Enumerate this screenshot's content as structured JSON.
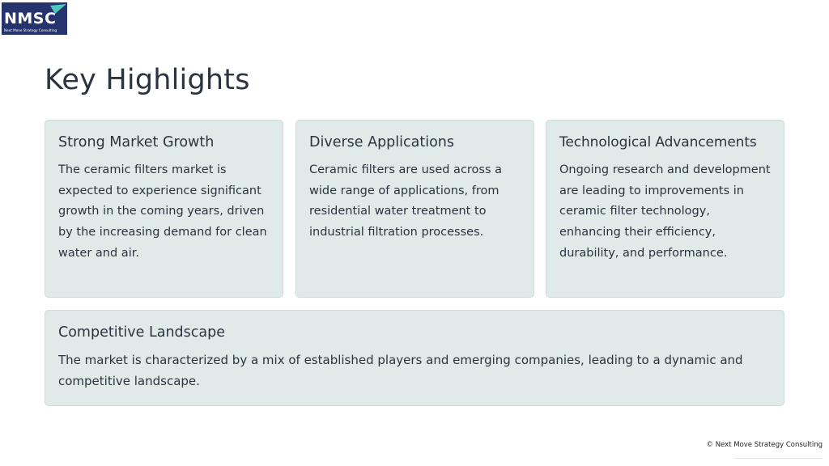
{
  "header": {
    "logo_text": "NMSC",
    "logo_tagline": "Next Move Strategy Consulting",
    "colors": {
      "logo_bg": "#26346e",
      "accent": "#4ec9c0"
    }
  },
  "page": {
    "title": "Key Highlights"
  },
  "cards": [
    {
      "title": "Strong Market Growth",
      "body": "The ceramic filters market is expected to experience significant growth in the coming years, driven by the increasing demand for clean water and air."
    },
    {
      "title": "Diverse Applications",
      "body": "Ceramic filters are used across a wide range of applications, from residential water treatment to industrial filtration processes."
    },
    {
      "title": "Technological Advancements",
      "body": "Ongoing research and development are leading to improvements in ceramic filter technology, enhancing their efficiency, durability, and performance."
    },
    {
      "title": "Competitive Landscape",
      "body": "The market is characterized by a mix of established players and emerging companies, leading to a dynamic and competitive landscape."
    }
  ],
  "footer": {
    "copyright": "© Next Move Strategy Consulting"
  },
  "theme": {
    "card_bg": "#e0eae8",
    "text": "#2b3440"
  }
}
